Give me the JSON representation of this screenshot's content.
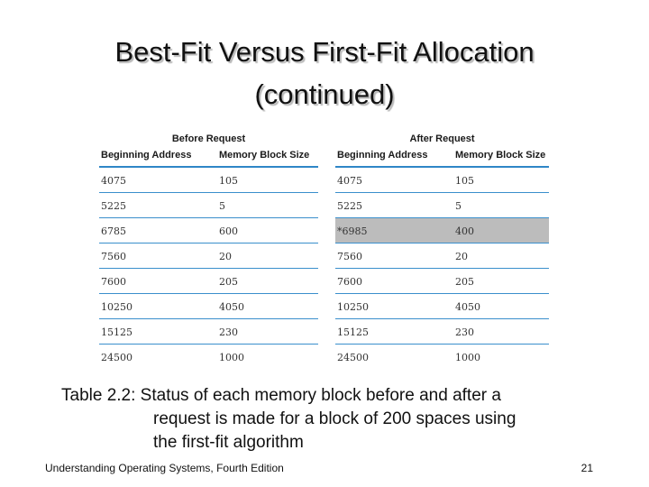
{
  "slide": {
    "title_line1": "Best-Fit Versus First-Fit Allocation",
    "title_line2": "(continued)"
  },
  "tables": {
    "before": {
      "group_label": "Before Request",
      "columns": [
        "Beginning Address",
        "Memory Block Size"
      ],
      "rows": [
        [
          "4075",
          "105"
        ],
        [
          "5225",
          "5"
        ],
        [
          "6785",
          "600"
        ],
        [
          "7560",
          "20"
        ],
        [
          "7600",
          "205"
        ],
        [
          "10250",
          "4050"
        ],
        [
          "15125",
          "230"
        ],
        [
          "24500",
          "1000"
        ]
      ]
    },
    "after": {
      "group_label": "After Request",
      "columns": [
        "Beginning Address",
        "Memory Block Size"
      ],
      "highlighted_row_index": 2,
      "rows": [
        [
          "4075",
          "105"
        ],
        [
          "5225",
          "5"
        ],
        [
          "*6985",
          "400"
        ],
        [
          "7560",
          "20"
        ],
        [
          "7600",
          "205"
        ],
        [
          "10250",
          "4050"
        ],
        [
          "15125",
          "230"
        ],
        [
          "24500",
          "1000"
        ]
      ]
    }
  },
  "caption": {
    "line1": "Table 2.2: Status of each memory block before and after a",
    "line2": "request is made for a block of 200 spaces using",
    "line3": "the first-fit algorithm"
  },
  "footer": {
    "text": "Understanding Operating Systems, Fourth Edition",
    "page_number": "21"
  },
  "colors": {
    "rule": "#2f86c7",
    "highlight": "#bcbcbc"
  }
}
